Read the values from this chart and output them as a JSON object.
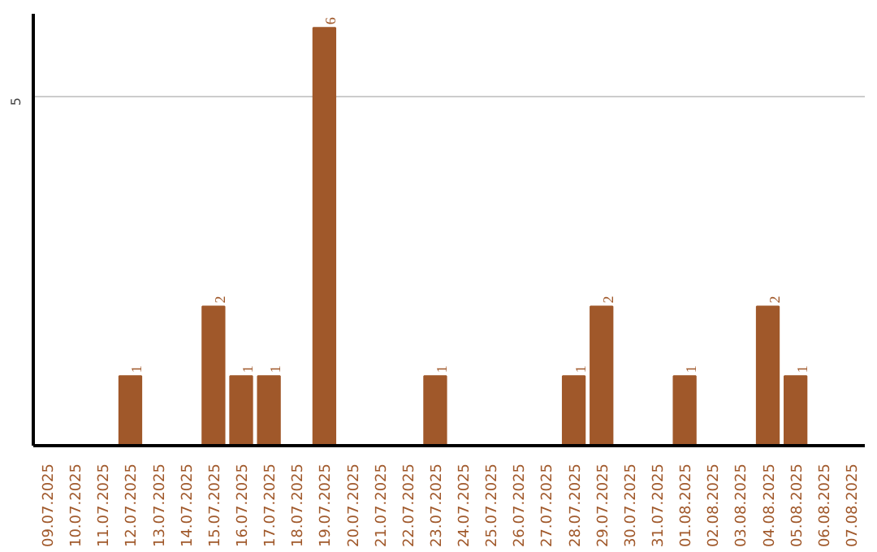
{
  "chart_data": {
    "type": "bar",
    "categories": [
      "09.07.2025",
      "10.07.2025",
      "11.07.2025",
      "12.07.2025",
      "13.07.2025",
      "14.07.2025",
      "15.07.2025",
      "16.07.2025",
      "17.07.2025",
      "18.07.2025",
      "19.07.2025",
      "20.07.2025",
      "21.07.2025",
      "22.07.2025",
      "23.07.2025",
      "24.07.2025",
      "25.07.2025",
      "26.07.2025",
      "27.07.2025",
      "28.07.2025",
      "29.07.2025",
      "30.07.2025",
      "31.07.2025",
      "01.08.2025",
      "02.08.2025",
      "03.08.2025",
      "04.08.2025",
      "05.08.2025",
      "06.08.2025",
      "07.08.2025"
    ],
    "values": [
      0,
      0,
      0,
      1,
      0,
      0,
      2,
      1,
      1,
      0,
      6,
      0,
      0,
      0,
      1,
      0,
      0,
      0,
      0,
      1,
      2,
      0,
      0,
      1,
      0,
      0,
      2,
      1,
      0,
      0
    ],
    "value_labels": [
      null,
      null,
      null,
      "1",
      null,
      null,
      "2",
      "1",
      "1",
      null,
      "6",
      null,
      null,
      null,
      "1",
      null,
      null,
      null,
      null,
      "1",
      "2",
      null,
      null,
      "1",
      null,
      null,
      "2",
      "1",
      null,
      null
    ],
    "color": "#a0582a",
    "ylim": [
      0,
      6.2
    ],
    "yticks": [
      5
    ],
    "grid": "y"
  }
}
